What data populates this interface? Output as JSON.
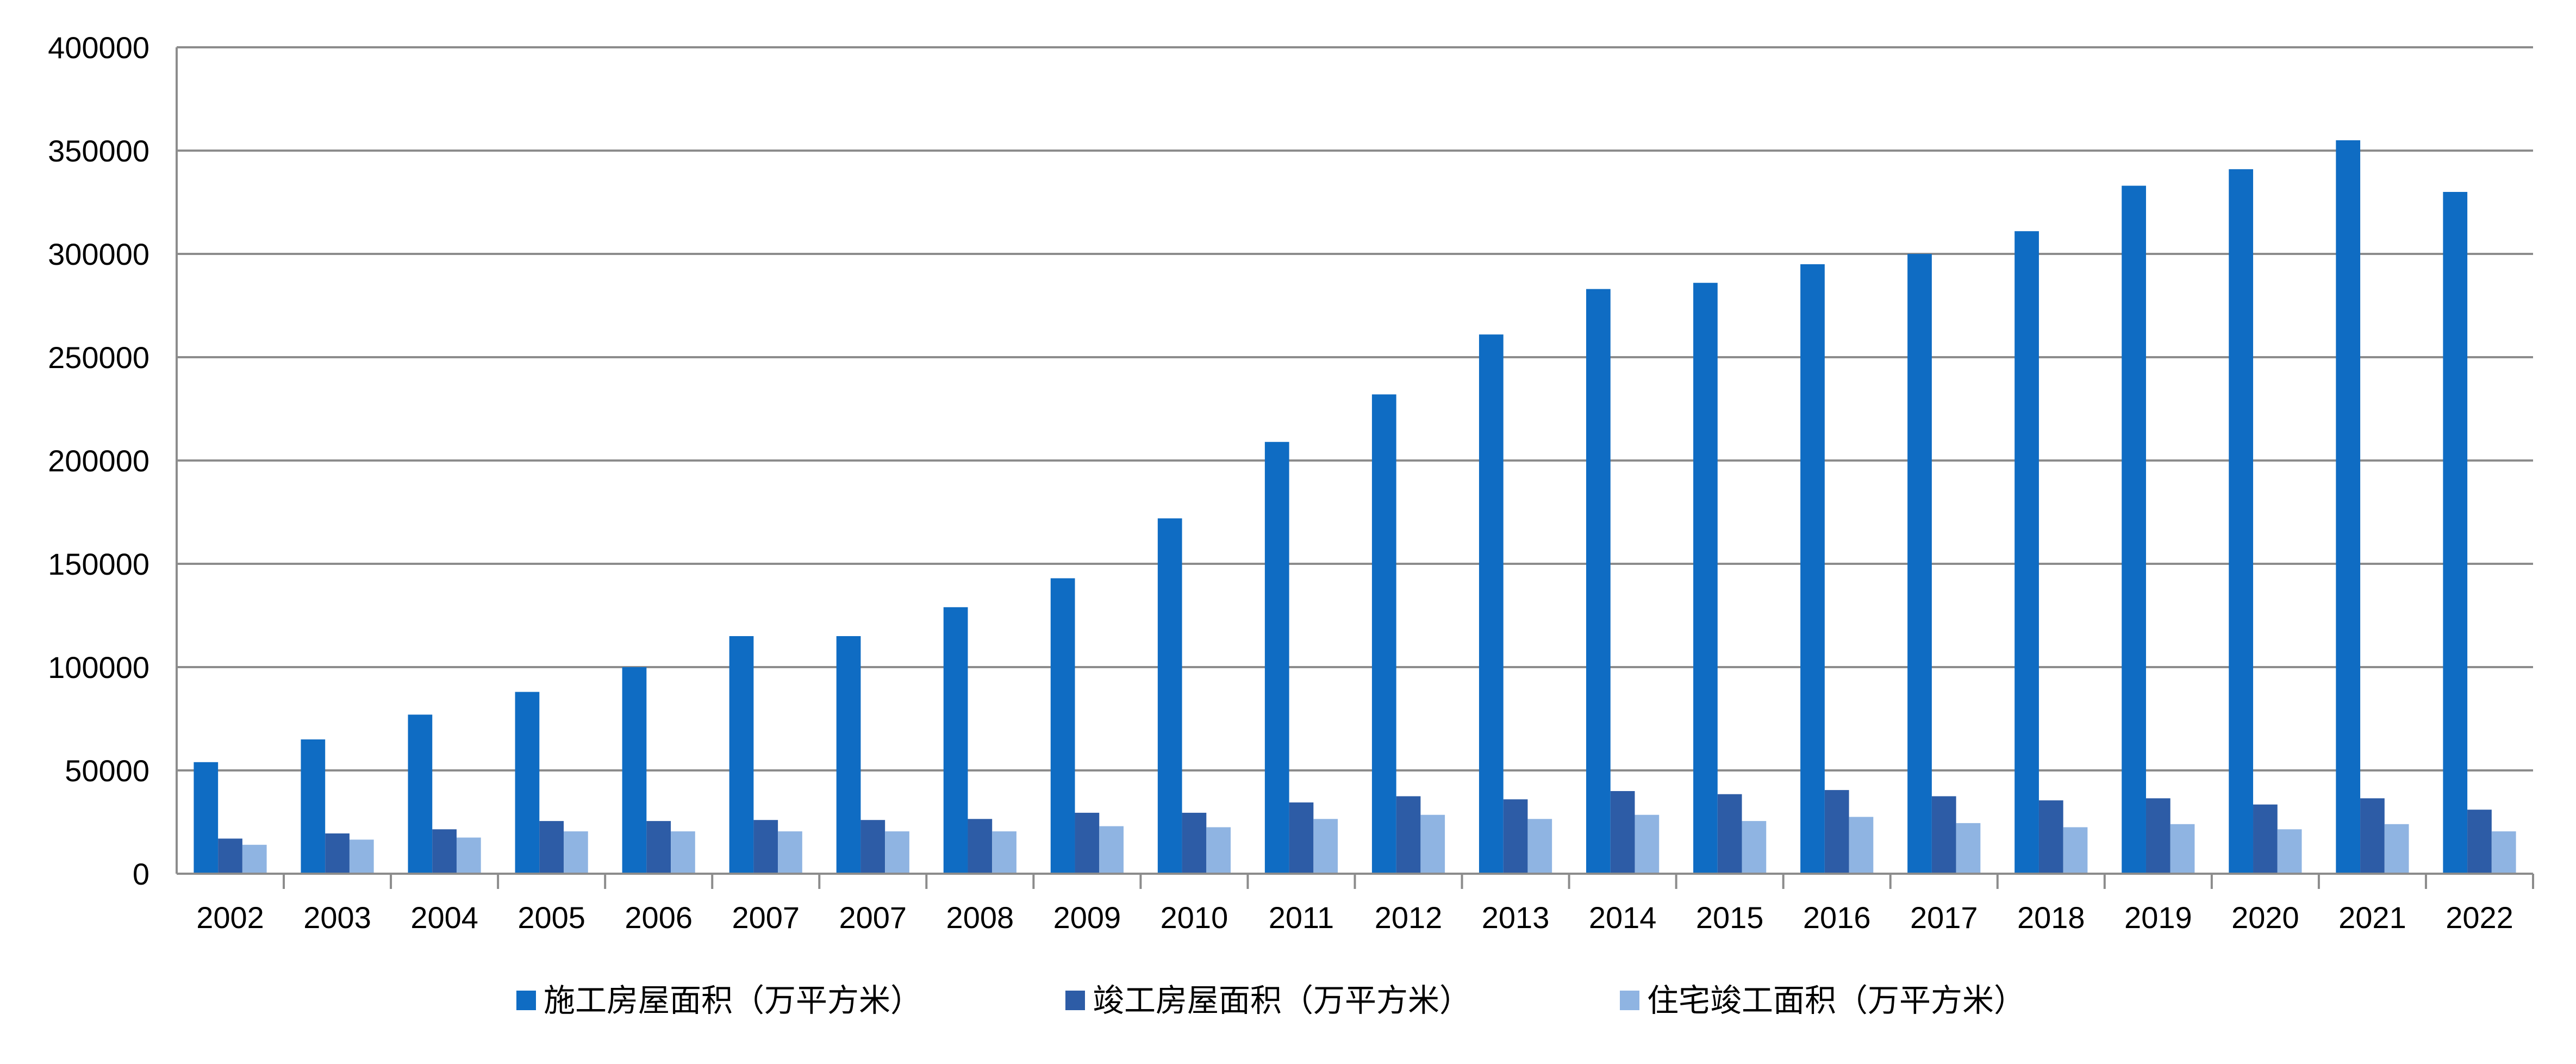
{
  "chart_data": {
    "type": "bar",
    "title": "",
    "xlabel": "",
    "ylabel": "",
    "ylim": [
      0,
      400000
    ],
    "yticks": [
      "0",
      "50000",
      "100000",
      "150000",
      "200000",
      "250000",
      "300000",
      "350000",
      "400000"
    ],
    "grid": true,
    "legend_position": "bottom",
    "categories": [
      "2002",
      "2003",
      "2004",
      "2005",
      "2006",
      "2007",
      "2007",
      "2008",
      "2009",
      "2010",
      "2011",
      "2012",
      "2013",
      "2014",
      "2015",
      "2016",
      "2017",
      "2018",
      "2019",
      "2020",
      "2021",
      "2022"
    ],
    "series": [
      {
        "name": "施工房屋面积（万平方米）",
        "color": "#0f6cc3",
        "values": [
          54000,
          65000,
          77000,
          88000,
          100000,
          115000,
          115000,
          129000,
          143000,
          172000,
          209000,
          232000,
          261000,
          283000,
          286000,
          295000,
          300000,
          311000,
          333000,
          341000,
          355000,
          330000
        ]
      },
      {
        "name": "竣工房屋面积（万平方米）",
        "color": "#2d5ca6",
        "values": [
          17000,
          19500,
          21500,
          25500,
          25500,
          26000,
          26000,
          26500,
          29500,
          29500,
          34500,
          37500,
          36000,
          40000,
          38500,
          40500,
          37500,
          35500,
          36500,
          33500,
          36500,
          31000
        ]
      },
      {
        "name": "住宅竣工面积（万平方米）",
        "color": "#8fb4e2",
        "values": [
          14000,
          16500,
          17500,
          20500,
          20500,
          20500,
          20500,
          20500,
          23000,
          22500,
          26500,
          28500,
          26500,
          28500,
          25500,
          27500,
          24500,
          22500,
          24000,
          21500,
          24000,
          20500
        ]
      }
    ]
  }
}
